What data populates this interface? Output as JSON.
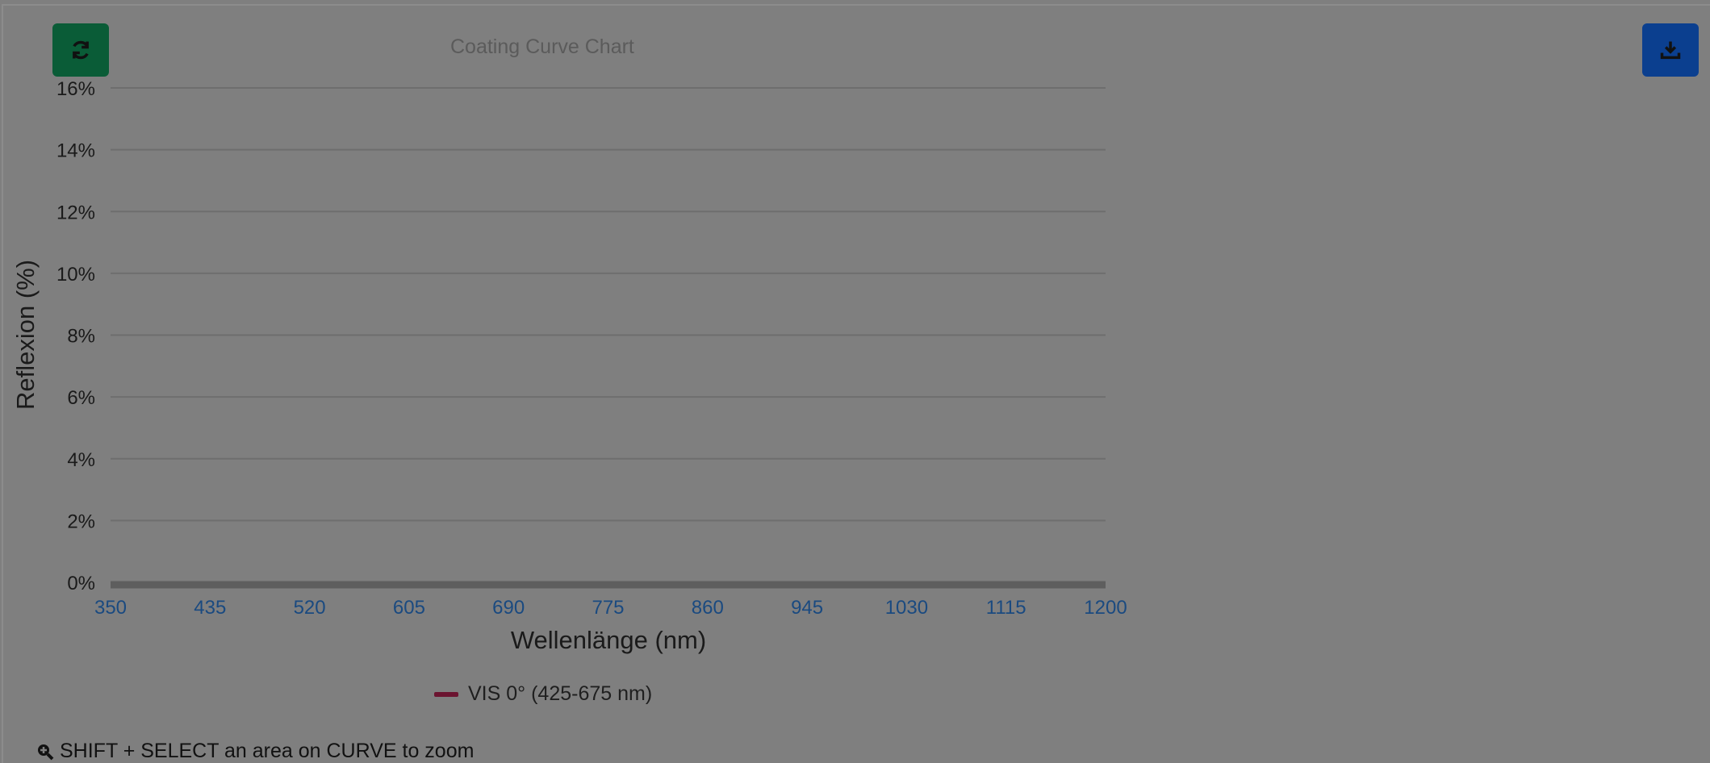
{
  "toolbar": {
    "refresh_icon": "refresh-icon",
    "download_icon": "download-icon"
  },
  "hint": {
    "icon": "zoom-in-icon",
    "text": "SHIFT + SELECT an area on CURVE to zoom"
  },
  "colors": {
    "background": "#7f7f7f",
    "refresh_button": "#0a5c37",
    "download_button": "#0b3f8f",
    "series": "#6b1430",
    "x_tick_label": "#1a4a80",
    "gridline": "#6e6e6e"
  },
  "chart_data": {
    "type": "line",
    "title": "Coating Curve Chart",
    "xlabel": "Wellenlänge (nm)",
    "ylabel": "Reflexion (%)",
    "xlim": [
      350,
      1200
    ],
    "ylim": [
      0,
      16
    ],
    "x_ticks": [
      "350",
      "435",
      "520",
      "605",
      "690",
      "775",
      "860",
      "945",
      "1030",
      "1115",
      "1200"
    ],
    "y_ticks": [
      "0%",
      "2%",
      "4%",
      "6%",
      "8%",
      "10%",
      "12%",
      "14%",
      "16%"
    ],
    "grid": true,
    "legend_position": "bottom",
    "series": [
      {
        "name": "VIS 0° (425-675 nm)",
        "x": [],
        "y": []
      }
    ]
  }
}
